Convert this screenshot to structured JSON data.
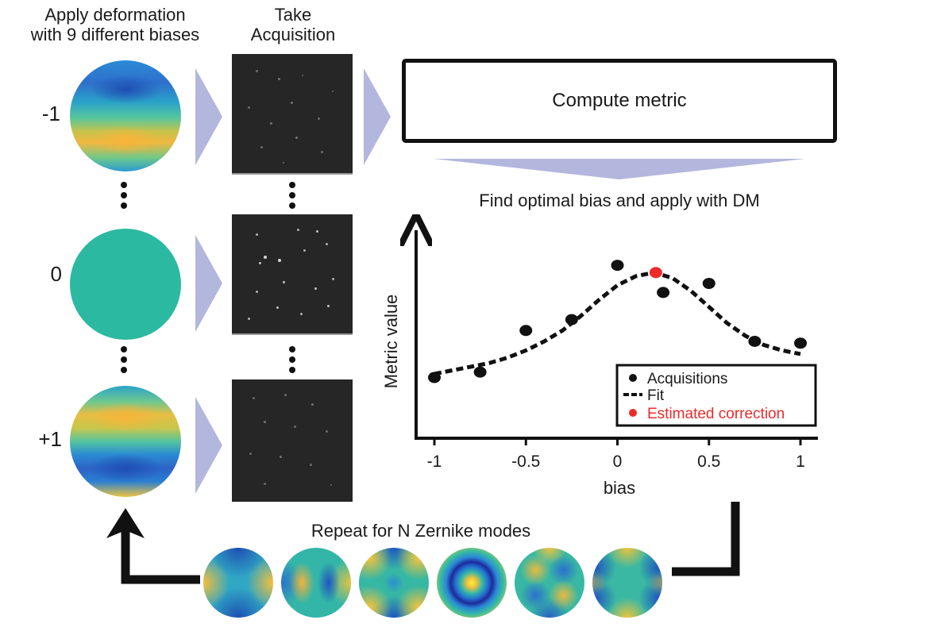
{
  "headers": {
    "deformation": [
      "Apply deformation",
      "with 9 different biases"
    ],
    "acquisition": [
      "Take",
      "Acquisition"
    ]
  },
  "bias_labels": [
    "-1",
    "0",
    "+1"
  ],
  "compute_metric_label": "Compute metric",
  "find_optimal_label": "Find optimal bias and apply with DM",
  "repeat_label": "Repeat for N Zernike modes",
  "colors": {
    "arrow_fill": "#b3b7de",
    "disc_mid": "#2cb9a1",
    "disc_blue": "#2d64c8",
    "disc_yellow": "#f4b63c",
    "correction": "#ee2a2a"
  },
  "chart_data": {
    "type": "scatter",
    "xlabel": "bias",
    "ylabel": "Metric value",
    "xlim": [
      -1.1,
      1.1
    ],
    "ylim": [
      0,
      1
    ],
    "x_ticks": [
      -1,
      -0.5,
      0,
      0.5,
      1
    ],
    "x_tick_labels": [
      "-1",
      "-0.5",
      "0",
      "0.5",
      "1"
    ],
    "legend": {
      "placement": "bottom-right",
      "entries": [
        "Acquisitions",
        "Fit",
        "Estimated correction"
      ]
    },
    "series": [
      {
        "name": "Acquisitions",
        "x": [
          -1,
          -0.75,
          -0.5,
          -0.25,
          0,
          0.25,
          0.5,
          0.75,
          1
        ],
        "y": [
          0.23,
          0.26,
          0.49,
          0.55,
          0.85,
          0.7,
          0.75,
          0.43,
          0.42
        ]
      },
      {
        "name": "Fit",
        "x": [
          -1,
          -0.9,
          -0.8,
          -0.7,
          -0.6,
          -0.5,
          -0.4,
          -0.3,
          -0.2,
          -0.1,
          0,
          0.1,
          0.2,
          0.3,
          0.4,
          0.5,
          0.6,
          0.7,
          0.8,
          0.9,
          1
        ],
        "y": [
          0.25,
          0.27,
          0.29,
          0.31,
          0.34,
          0.38,
          0.43,
          0.49,
          0.57,
          0.66,
          0.74,
          0.79,
          0.81,
          0.78,
          0.71,
          0.62,
          0.53,
          0.46,
          0.41,
          0.38,
          0.36
        ]
      },
      {
        "name": "Estimated correction",
        "x": [
          0.21
        ],
        "y": [
          0.81
        ]
      }
    ]
  }
}
